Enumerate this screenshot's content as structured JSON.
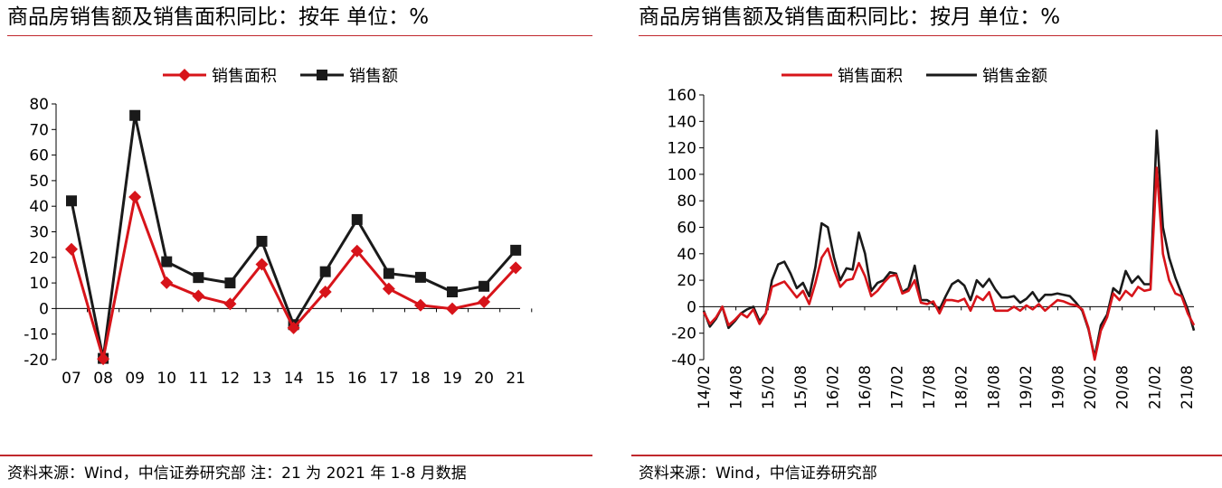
{
  "colors": {
    "red": "#d7141a",
    "black": "#1a1a1a",
    "rule": "#c0282d"
  },
  "charts": [
    {
      "title": "商品房销售额及销售面积同比：按年  单位：%",
      "source": "资料来源：Wind，中信证券研究部  注：21 为 2021 年 1-8 月数据",
      "legend": [
        {
          "label": "销售面积",
          "color": "#d7141a",
          "marker": "diamond"
        },
        {
          "label": "销售额",
          "color": "#1a1a1a",
          "marker": "square"
        }
      ]
    },
    {
      "title": "商品房销售额及销售面积同比：按月  单位：%",
      "source": "资料来源：Wind，中信证券研究部",
      "legend": [
        {
          "label": "销售面积",
          "color": "#d7141a",
          "marker": "none"
        },
        {
          "label": "销售金额",
          "color": "#1a1a1a",
          "marker": "none"
        }
      ]
    }
  ],
  "chart_data": [
    {
      "type": "line",
      "categories": [
        "07",
        "08",
        "09",
        "10",
        "11",
        "12",
        "13",
        "14",
        "15",
        "16",
        "17",
        "18",
        "19",
        "20",
        "21"
      ],
      "series": [
        {
          "name": "销售面积",
          "values": [
            23.2,
            -19.7,
            43.6,
            10.1,
            4.9,
            1.8,
            17.3,
            -7.6,
            6.5,
            22.5,
            7.7,
            1.3,
            -0.1,
            2.6,
            15.9
          ]
        },
        {
          "name": "销售额",
          "values": [
            42.1,
            -19.5,
            75.5,
            18.3,
            12.1,
            10.0,
            26.3,
            -6.3,
            14.4,
            34.8,
            13.7,
            12.2,
            6.5,
            8.7,
            22.8
          ]
        }
      ],
      "yticks": [
        80,
        70,
        60,
        50,
        40,
        30,
        20,
        10,
        0,
        -10,
        -20
      ],
      "ylim": [
        -20,
        80
      ]
    },
    {
      "type": "line",
      "x_labels": [
        "14/02",
        "14/08",
        "15/02",
        "15/08",
        "16/02",
        "16/08",
        "17/02",
        "17/08",
        "18/02",
        "18/08",
        "19/02",
        "19/08",
        "20/02",
        "20/08",
        "21/02",
        "21/08"
      ],
      "series": [
        {
          "name": "销售面积",
          "values": [
            -4,
            -13,
            -8,
            0,
            -14,
            -10,
            -5,
            -8,
            -2,
            -13,
            -5,
            15,
            17,
            19,
            13,
            7,
            12,
            2,
            18,
            37,
            44,
            28,
            15,
            20,
            21,
            33,
            23,
            8,
            12,
            18,
            23,
            24,
            10,
            12,
            20,
            3,
            2,
            4,
            -5,
            5,
            5,
            4,
            6,
            -3,
            8,
            5,
            11,
            -3,
            -3,
            -3,
            0,
            -3,
            1,
            -2,
            2,
            -3,
            1,
            5,
            4,
            2,
            1,
            -2,
            -16,
            -40,
            -18,
            -8,
            10,
            5,
            12,
            8,
            15,
            12,
            13,
            105,
            40,
            20,
            10,
            8,
            -5,
            -14
          ]
        },
        {
          "name": "销售金额",
          "values": [
            -3,
            -15,
            -9,
            0,
            -16,
            -11,
            -5,
            -2,
            0,
            -11,
            -5,
            20,
            32,
            34,
            25,
            14,
            18,
            8,
            30,
            63,
            60,
            37,
            20,
            29,
            28,
            56,
            40,
            12,
            18,
            20,
            26,
            25,
            11,
            14,
            31,
            5,
            5,
            2,
            -2,
            8,
            17,
            20,
            16,
            5,
            20,
            15,
            21,
            13,
            7,
            7,
            8,
            3,
            6,
            11,
            4,
            9,
            9,
            10,
            9,
            8,
            3,
            -3,
            -17,
            -38,
            -14,
            -6,
            14,
            10,
            27,
            18,
            23,
            17,
            17,
            133,
            60,
            37,
            22,
            10,
            -2,
            -18
          ]
        }
      ],
      "yticks": [
        160,
        140,
        120,
        100,
        80,
        60,
        40,
        20,
        0,
        -20,
        -40
      ],
      "ylim": [
        -40,
        160
      ]
    }
  ]
}
